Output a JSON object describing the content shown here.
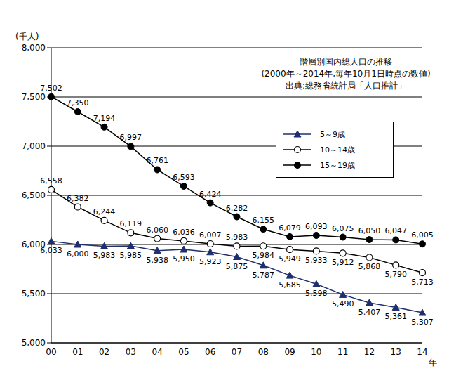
{
  "chart_data": {
    "type": "line",
    "title": "階層別国内総人口の推移",
    "subtitle": "(2000年～2014年,毎年10月1日時点の数値)",
    "annotations": [
      "出典:総務省統計局「人口推計」"
    ],
    "x_label": "年",
    "y_label": "(千人)",
    "categories": [
      "00",
      "01",
      "02",
      "03",
      "04",
      "05",
      "06",
      "07",
      "08",
      "09",
      "10",
      "11",
      "12",
      "13",
      "14"
    ],
    "series": [
      {
        "name": "5～9歳",
        "color": "#1f2f6e",
        "marker": "triangle",
        "values": [
          6033,
          6000,
          5983,
          5985,
          5938,
          5950,
          5923,
          5875,
          5787,
          5685,
          5598,
          5490,
          5407,
          5361,
          5307
        ],
        "value_labels": [
          "6,033",
          "6,000",
          "5,983",
          "5,985",
          "5,938",
          "5,950",
          "5,923",
          "5,875",
          "5,787",
          "5,685",
          "5,598",
          "5,490",
          "5,407",
          "5,361",
          "5,307"
        ]
      },
      {
        "name": "10～14歳",
        "color": "#000000",
        "marker": "circle_open",
        "values": [
          6558,
          6382,
          6244,
          6119,
          6060,
          6036,
          6007,
          5983,
          5984,
          5949,
          5933,
          5912,
          5868,
          5790,
          5713
        ],
        "value_labels": [
          "6,558",
          "6,382",
          "6,244",
          "6,119",
          "6,060",
          "6,036",
          "6,007",
          "5,983",
          "5,984",
          "5,949",
          "5,933",
          "5,912",
          "5,868",
          "5,790",
          "5,713"
        ]
      },
      {
        "name": "15～19歳",
        "color": "#000000",
        "marker": "circle",
        "values": [
          7502,
          7350,
          7194,
          6997,
          6761,
          6593,
          6424,
          6282,
          6155,
          6079,
          6093,
          6075,
          6050,
          6047,
          6005
        ],
        "value_labels": [
          "7,502",
          "7,350",
          "7,194",
          "6,997",
          "6,761",
          "6,593",
          "6,424",
          "6,282",
          "6,155",
          "6,079",
          "6,093",
          "6,075",
          "6,050",
          "6,047",
          "6,005"
        ]
      }
    ],
    "ylim": [
      5000,
      8000
    ],
    "yticks": [
      {
        "value": 5000,
        "label": "5,000"
      },
      {
        "value": 5500,
        "label": "5,500"
      },
      {
        "value": 6000,
        "label": "6,000"
      },
      {
        "value": 6500,
        "label": "6,500"
      },
      {
        "value": 7000,
        "label": "7,000"
      },
      {
        "value": 7500,
        "label": "7,500"
      },
      {
        "value": 8000,
        "label": "8,000"
      }
    ],
    "grid": true,
    "legend": "upper right",
    "data_labels": true
  }
}
